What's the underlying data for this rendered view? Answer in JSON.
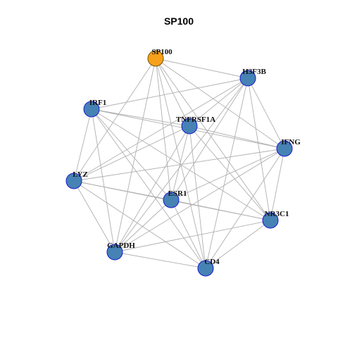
{
  "title": "SP100",
  "colors": {
    "hub_fill": "#F7A11A",
    "hub_stroke": "#7a5200",
    "node_fill": "#4682B4",
    "node_stroke": "#1a1ad0",
    "edge": "#b0b0b0"
  },
  "nodes": [
    {
      "id": "SP100",
      "label": "SP100",
      "hub": true
    },
    {
      "id": "H3F3B",
      "label": "H3F3B",
      "hub": false
    },
    {
      "id": "IRF1",
      "label": "IRF1",
      "hub": false
    },
    {
      "id": "TNFRSF1A",
      "label": "TNFRSF1A",
      "hub": false
    },
    {
      "id": "IFNG",
      "label": "IFNG",
      "hub": false
    },
    {
      "id": "LYZ",
      "label": "LYZ",
      "hub": false
    },
    {
      "id": "ESR1",
      "label": "ESR1",
      "hub": false
    },
    {
      "id": "NR3C1",
      "label": "NR3C1",
      "hub": false
    },
    {
      "id": "GAPDH",
      "label": "GAPDH",
      "hub": false
    },
    {
      "id": "CD4",
      "label": "CD4",
      "hub": false
    }
  ],
  "edges": [
    [
      "SP100",
      "H3F3B"
    ],
    [
      "SP100",
      "TNFRSF1A"
    ],
    [
      "SP100",
      "IFNG"
    ],
    [
      "SP100",
      "LYZ"
    ],
    [
      "SP100",
      "ESR1"
    ],
    [
      "SP100",
      "NR3C1"
    ],
    [
      "SP100",
      "GAPDH"
    ],
    [
      "SP100",
      "CD4"
    ],
    [
      "H3F3B",
      "IRF1"
    ],
    [
      "H3F3B",
      "TNFRSF1A"
    ],
    [
      "H3F3B",
      "IFNG"
    ],
    [
      "H3F3B",
      "LYZ"
    ],
    [
      "H3F3B",
      "ESR1"
    ],
    [
      "H3F3B",
      "NR3C1"
    ],
    [
      "H3F3B",
      "GAPDH"
    ],
    [
      "H3F3B",
      "CD4"
    ],
    [
      "IRF1",
      "TNFRSF1A"
    ],
    [
      "IRF1",
      "IFNG"
    ],
    [
      "IRF1",
      "LYZ"
    ],
    [
      "IRF1",
      "ESR1"
    ],
    [
      "IRF1",
      "NR3C1"
    ],
    [
      "IRF1",
      "GAPDH"
    ],
    [
      "IRF1",
      "CD4"
    ],
    [
      "TNFRSF1A",
      "IFNG"
    ],
    [
      "TNFRSF1A",
      "LYZ"
    ],
    [
      "TNFRSF1A",
      "ESR1"
    ],
    [
      "TNFRSF1A",
      "NR3C1"
    ],
    [
      "TNFRSF1A",
      "GAPDH"
    ],
    [
      "TNFRSF1A",
      "CD4"
    ],
    [
      "IFNG",
      "LYZ"
    ],
    [
      "IFNG",
      "ESR1"
    ],
    [
      "IFNG",
      "NR3C1"
    ],
    [
      "IFNG",
      "GAPDH"
    ],
    [
      "IFNG",
      "CD4"
    ],
    [
      "LYZ",
      "ESR1"
    ],
    [
      "LYZ",
      "NR3C1"
    ],
    [
      "LYZ",
      "GAPDH"
    ],
    [
      "LYZ",
      "CD4"
    ],
    [
      "ESR1",
      "NR3C1"
    ],
    [
      "ESR1",
      "GAPDH"
    ],
    [
      "ESR1",
      "CD4"
    ],
    [
      "NR3C1",
      "GAPDH"
    ],
    [
      "NR3C1",
      "CD4"
    ],
    [
      "GAPDH",
      "CD4"
    ]
  ]
}
